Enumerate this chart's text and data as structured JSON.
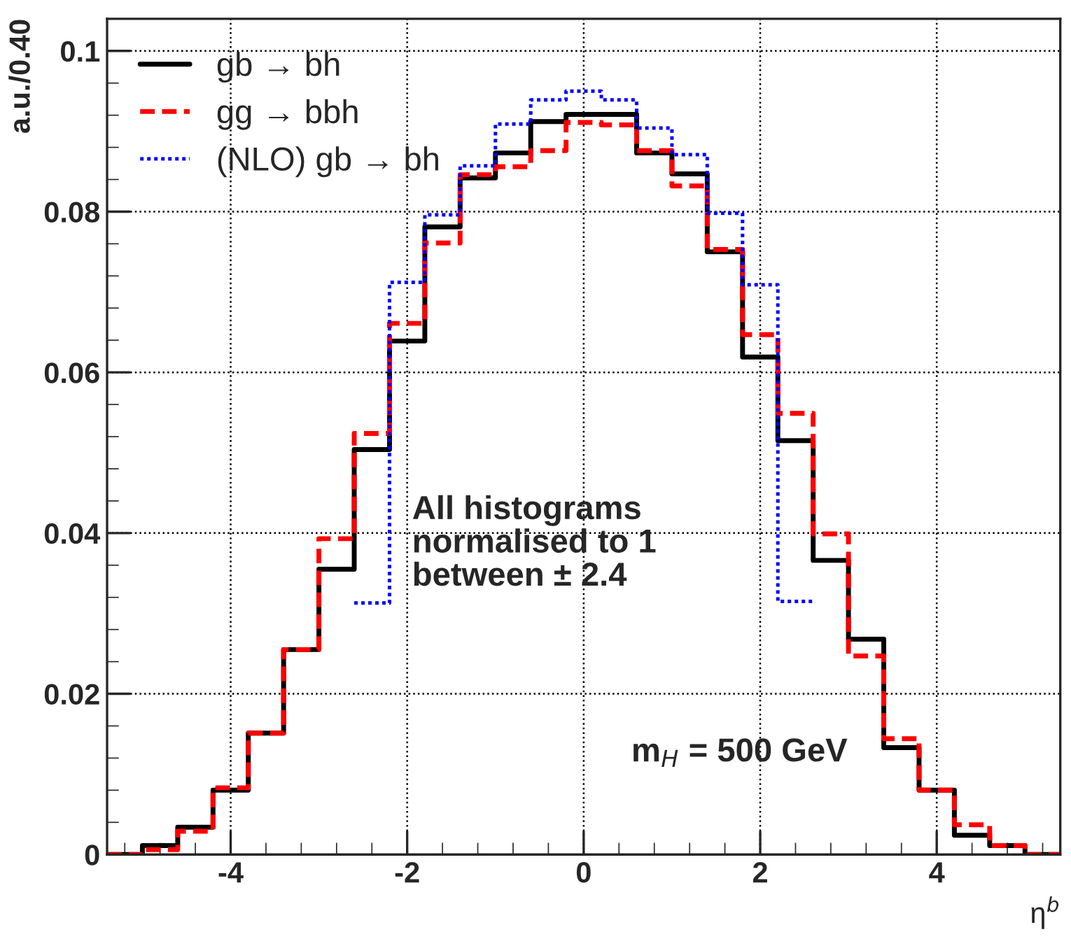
{
  "chart_data": {
    "type": "histogram",
    "bins": [
      -5.4,
      -5.0,
      -4.6,
      -4.2,
      -3.8,
      -3.4,
      -3.0,
      -2.6,
      -2.2,
      -1.8,
      -1.4,
      -1.0,
      -0.6,
      -0.2,
      0.2,
      0.6,
      1.0,
      1.4,
      1.8,
      2.2,
      2.6,
      3.0,
      3.4,
      3.8,
      4.2,
      4.6,
      5.0,
      5.4
    ],
    "series": [
      {
        "name": "gb → bh",
        "color": "#000000",
        "line_style": "solid",
        "values": [
          0,
          0.0011,
          0.0034,
          0.008,
          0.0151,
          0.0255,
          0.0355,
          0.0504,
          0.0639,
          0.0781,
          0.0842,
          0.0873,
          0.0912,
          0.0921,
          0.0921,
          0.0873,
          0.0847,
          0.075,
          0.0619,
          0.0515,
          0.0366,
          0.0268,
          0.0133,
          0.008,
          0.0024,
          0.0011,
          0
        ]
      },
      {
        "name": "gg → bbh",
        "color": "#ff0000",
        "line_style": "dashed",
        "values": [
          0,
          0.0006,
          0.0029,
          0.0083,
          0.0151,
          0.0255,
          0.0393,
          0.0524,
          0.0661,
          0.0761,
          0.0846,
          0.0856,
          0.0876,
          0.0911,
          0.0908,
          0.0876,
          0.0832,
          0.0753,
          0.0647,
          0.0549,
          0.0399,
          0.0247,
          0.0144,
          0.008,
          0.0037,
          0.0011,
          0
        ]
      },
      {
        "name": "(NLO) gb → bh",
        "color": "#0000ff",
        "line_style": "dotted",
        "bins": [
          -2.6,
          -2.2,
          -1.8,
          -1.4,
          -1.0,
          -0.6,
          -0.2,
          0.2,
          0.6,
          1.0,
          1.4,
          1.8,
          2.2,
          2.6
        ],
        "values": [
          0.0313,
          0.0712,
          0.0796,
          0.0857,
          0.0909,
          0.0939,
          0.095,
          0.0939,
          0.0904,
          0.0871,
          0.0798,
          0.0709,
          0.0315
        ]
      }
    ],
    "xlabel": "η$^{b}$",
    "ylabel": "a.u./0.40",
    "xlim": [
      -5.4,
      5.4
    ],
    "xticks": [
      -4,
      -2,
      0,
      2,
      4
    ],
    "ylim": [
      0,
      0.104
    ],
    "yticks": [
      0,
      0.02,
      0.04,
      0.06,
      0.08,
      0.1
    ],
    "grid": true,
    "legend": "top left",
    "annotations": [
      "All histograms\nnormalised to 1\nbetween ± 2.4",
      "m$_{H}$ = 500 GeV"
    ]
  }
}
